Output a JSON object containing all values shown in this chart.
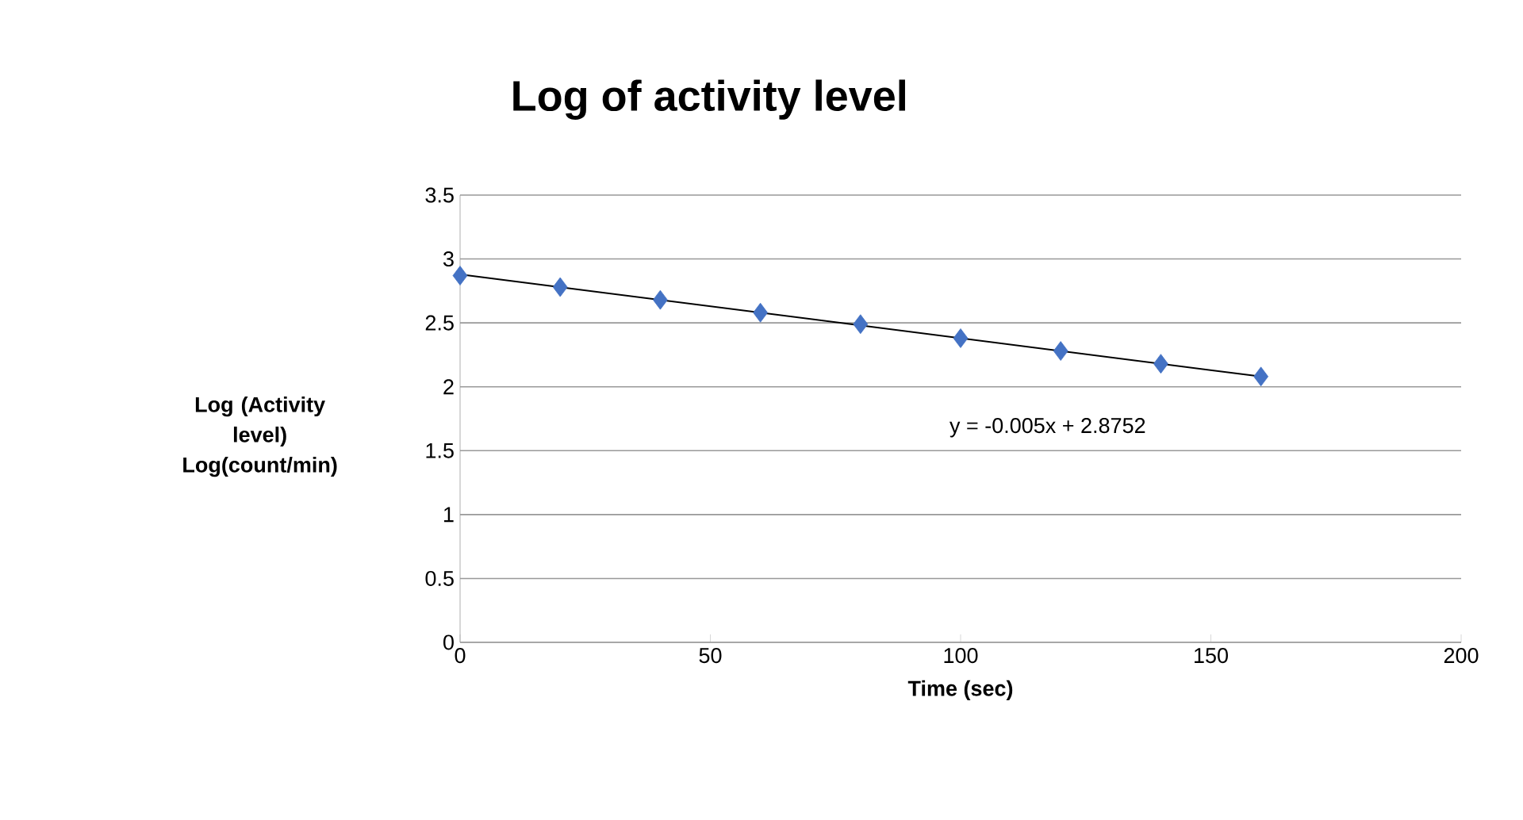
{
  "chart_data": {
    "type": "scatter",
    "title": "Log of activity level",
    "xlabel": "Time (sec)",
    "ylabel": "Log (Activity level) Log(count/min)",
    "x": [
      0,
      20,
      40,
      60,
      80,
      100,
      120,
      140,
      160
    ],
    "series": [
      {
        "color": "#4472c4",
        "values": [
          2.87,
          2.78,
          2.68,
          2.58,
          2.49,
          2.38,
          2.28,
          2.18,
          2.08
        ]
      },
      {
        "type": "line",
        "color": "#000000",
        "x": [
          0,
          160
        ],
        "values": [
          2.88,
          2.08
        ],
        "marker": "none",
        "line_style": "solid"
      }
    ],
    "marker": "diamond",
    "xlim": [
      0,
      200
    ],
    "xticks": [
      0,
      50,
      100,
      150,
      200
    ],
    "ylim": [
      0,
      3.5
    ],
    "yticks": [
      0,
      0.5,
      1,
      1.5,
      2,
      2.5,
      3,
      3.5
    ],
    "grid": "y",
    "annotations": [
      "y = -0.005x + 2.8752"
    ]
  }
}
